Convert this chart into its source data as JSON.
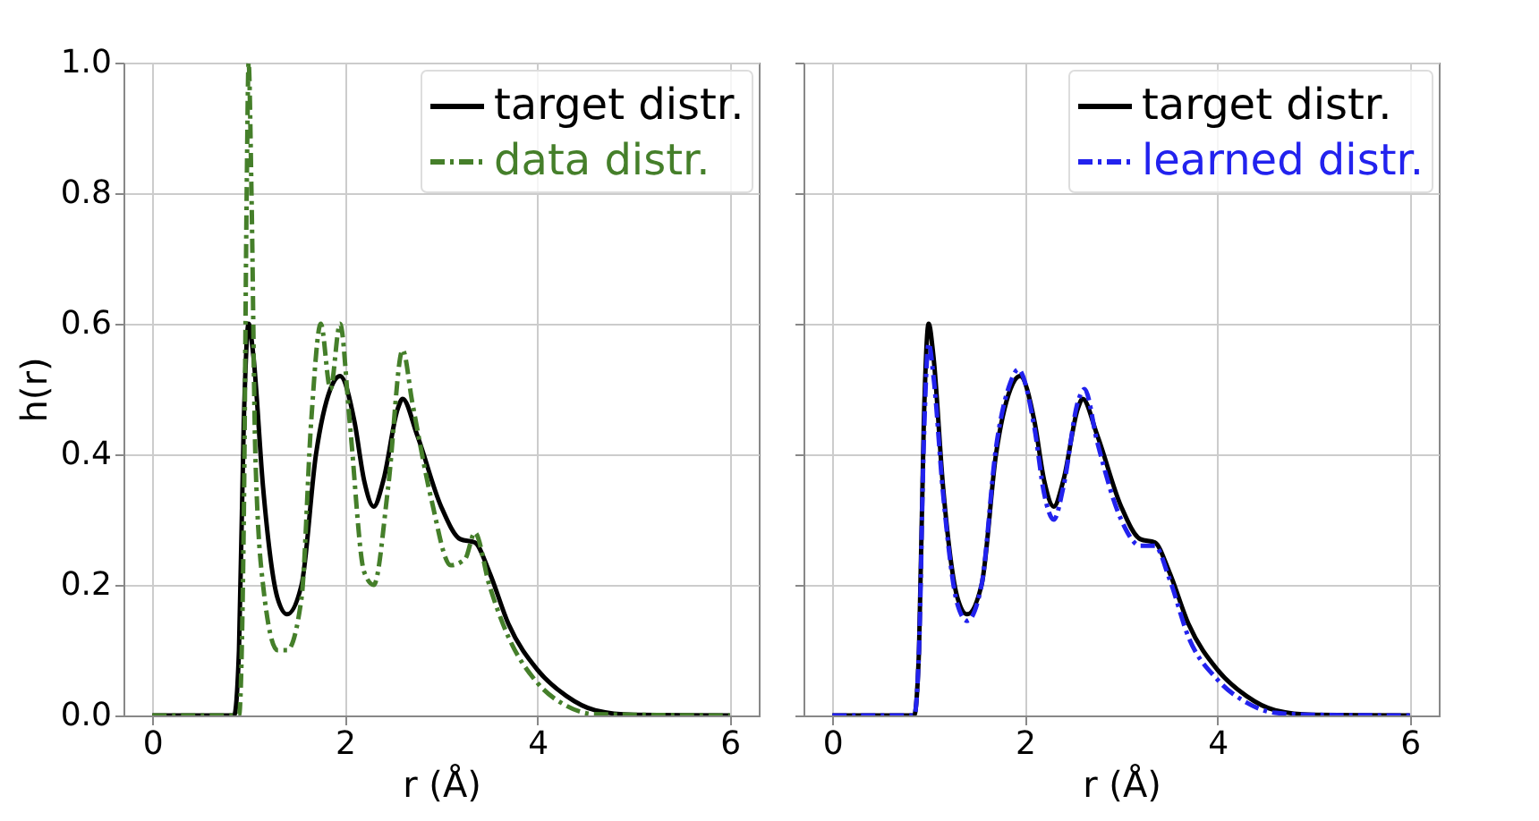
{
  "chart_data": [
    {
      "type": "line",
      "xlabel": "r (Å)",
      "ylabel": "h(r)",
      "xlim": [
        -0.3,
        6.3
      ],
      "ylim": [
        0,
        1.0
      ],
      "xticks": [
        0,
        2,
        4,
        6
      ],
      "yticks": [
        {
          "value": 0,
          "label": "0.0"
        },
        0.2,
        0.4,
        0.6,
        0.8,
        {
          "value": 1,
          "label": "1.0"
        }
      ],
      "grid": true,
      "legend": "top right",
      "series": [
        {
          "name": "target distr.",
          "color": "#000000",
          "line_style": "solid",
          "x": [
            0,
            0.85,
            0.9,
            0.95,
            1.0,
            1.05,
            1.15,
            1.3,
            1.4,
            1.55,
            1.7,
            1.85,
            1.95,
            2.1,
            2.2,
            2.3,
            2.4,
            2.55,
            2.6,
            2.75,
            3.0,
            3.2,
            3.35,
            3.5,
            3.7,
            4.0,
            4.3,
            4.6,
            5.0,
            6.0
          ],
          "values": [
            0,
            0,
            0.1,
            0.45,
            0.6,
            0.55,
            0.35,
            0.18,
            0.155,
            0.2,
            0.4,
            0.5,
            0.52,
            0.45,
            0.36,
            0.32,
            0.36,
            0.47,
            0.485,
            0.43,
            0.32,
            0.27,
            0.265,
            0.22,
            0.14,
            0.07,
            0.03,
            0.008,
            0.001,
            0
          ]
        },
        {
          "name": "data distr.",
          "color": "#457f2a",
          "line_style": "dashdot",
          "x": [
            0,
            0.9,
            0.95,
            0.98,
            1.0,
            1.03,
            1.07,
            1.15,
            1.3,
            1.4,
            1.55,
            1.65,
            1.75,
            1.85,
            1.95,
            2.05,
            2.2,
            2.3,
            2.45,
            2.6,
            2.7,
            2.9,
            3.1,
            3.25,
            3.35,
            3.5,
            3.7,
            4.0,
            4.3,
            4.6,
            6.0
          ],
          "values": [
            0,
            0,
            0.3,
            0.8,
            1.0,
            0.8,
            0.4,
            0.2,
            0.1,
            0.1,
            0.18,
            0.45,
            0.6,
            0.5,
            0.6,
            0.45,
            0.22,
            0.2,
            0.35,
            0.56,
            0.48,
            0.33,
            0.23,
            0.24,
            0.28,
            0.2,
            0.12,
            0.05,
            0.015,
            0.002,
            0
          ]
        }
      ]
    },
    {
      "type": "line",
      "xlabel": "r (Å)",
      "xlim": [
        -0.3,
        6.3
      ],
      "ylim": [
        0,
        1.0
      ],
      "xticks": [
        0,
        2,
        4,
        6
      ],
      "yticks": [
        0.0,
        0.2,
        0.4,
        0.6,
        0.8,
        1.0
      ],
      "grid": true,
      "legend": "top right",
      "tick_labels": "x",
      "series": [
        {
          "name": "target distr.",
          "color": "#000000",
          "line_style": "solid",
          "x": [
            0,
            0.85,
            0.9,
            0.95,
            1.0,
            1.05,
            1.15,
            1.3,
            1.4,
            1.55,
            1.7,
            1.85,
            1.95,
            2.1,
            2.2,
            2.3,
            2.4,
            2.55,
            2.6,
            2.75,
            3.0,
            3.2,
            3.35,
            3.5,
            3.7,
            4.0,
            4.3,
            4.6,
            5.0,
            6.0
          ],
          "values": [
            0,
            0,
            0.1,
            0.45,
            0.6,
            0.55,
            0.35,
            0.18,
            0.155,
            0.2,
            0.4,
            0.5,
            0.52,
            0.45,
            0.36,
            0.32,
            0.36,
            0.47,
            0.485,
            0.43,
            0.32,
            0.27,
            0.265,
            0.22,
            0.14,
            0.07,
            0.03,
            0.008,
            0.001,
            0
          ]
        },
        {
          "name": "learned distr.",
          "color": "#2222ee",
          "line_style": "dashdot",
          "x": [
            0,
            0.85,
            0.9,
            0.95,
            1.0,
            1.05,
            1.15,
            1.3,
            1.4,
            1.55,
            1.7,
            1.85,
            1.93,
            2.1,
            2.2,
            2.3,
            2.4,
            2.55,
            2.62,
            2.75,
            3.0,
            3.2,
            3.35,
            3.5,
            3.7,
            4.0,
            4.3,
            4.6,
            5.0,
            6.0
          ],
          "values": [
            0,
            0,
            0.1,
            0.42,
            0.57,
            0.52,
            0.34,
            0.17,
            0.145,
            0.2,
            0.41,
            0.51,
            0.53,
            0.44,
            0.34,
            0.3,
            0.35,
            0.48,
            0.5,
            0.42,
            0.3,
            0.26,
            0.26,
            0.21,
            0.12,
            0.055,
            0.02,
            0.004,
            0.001,
            0
          ]
        }
      ]
    }
  ]
}
